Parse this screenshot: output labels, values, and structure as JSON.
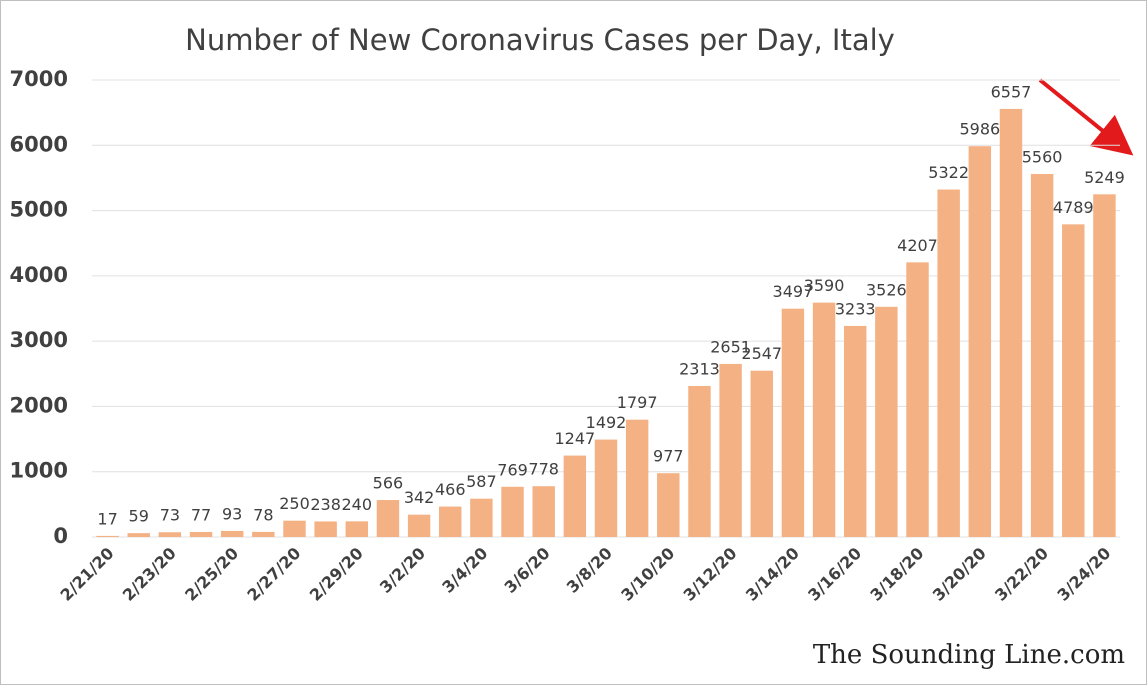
{
  "chart_data": {
    "type": "bar",
    "title": "Number of New Coronavirus Cases per Day, Italy",
    "categories": [
      "2/21/20",
      null,
      "2/23/20",
      null,
      "2/25/20",
      null,
      "2/27/20",
      null,
      "2/29/20",
      null,
      "3/2/20",
      null,
      "3/4/20",
      null,
      "3/6/20",
      null,
      "3/8/20",
      null,
      "3/10/20",
      null,
      "3/12/20",
      null,
      "3/14/20",
      null,
      "3/16/20",
      null,
      "3/18/20",
      null,
      "3/20/20",
      null,
      "3/22/20",
      null,
      "3/24/20"
    ],
    "values": [
      17,
      59,
      73,
      77,
      93,
      78,
      250,
      238,
      240,
      566,
      342,
      466,
      587,
      769,
      778,
      1247,
      1492,
      1797,
      977,
      2313,
      2651,
      2547,
      3497,
      3590,
      3233,
      3526,
      4207,
      5322,
      5986,
      6557,
      5560,
      4789,
      5249
    ],
    "color": "#f4b183",
    "ylim": [
      0,
      7000
    ],
    "yticks": [
      0,
      1000,
      2000,
      3000,
      4000,
      5000,
      6000,
      7000
    ],
    "grid": true,
    "watermark": "The Sounding Line.com"
  }
}
